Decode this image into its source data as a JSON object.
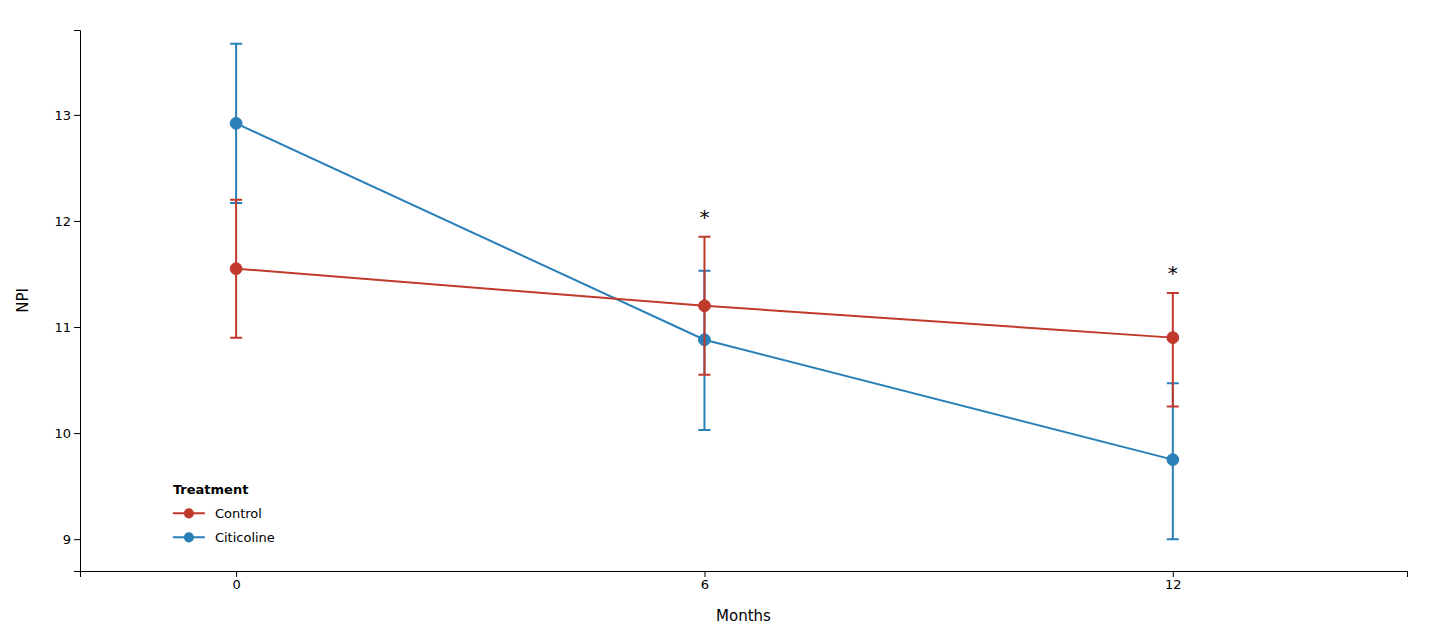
{
  "chart_data": {
    "type": "line",
    "xlabel": "Months",
    "ylabel": "NPI",
    "x": [
      0,
      6,
      12
    ],
    "series": [
      {
        "name": "Control",
        "color": "#c0392b",
        "values": [
          11.55,
          11.2,
          10.9
        ],
        "error_lower": [
          0.65,
          0.65,
          0.65
        ],
        "error_upper": [
          0.65,
          0.65,
          0.42
        ]
      },
      {
        "name": "Citicoline",
        "color": "#2980b9",
        "values": [
          12.92,
          10.88,
          9.75
        ],
        "error_lower": [
          0.75,
          0.85,
          0.75
        ],
        "error_upper": [
          0.75,
          0.65,
          0.72
        ]
      }
    ],
    "annotations": [
      {
        "text": "*",
        "x": 6,
        "y": 11.97
      },
      {
        "text": "*",
        "x": 12,
        "y": 11.44
      }
    ],
    "xlim": [
      -2,
      15
    ],
    "xticks": [
      0,
      6,
      12
    ],
    "ylim": [
      8.7,
      13.8
    ],
    "yticks": [
      9,
      10,
      11,
      12,
      13
    ],
    "marker": "circle",
    "grid": false,
    "legend": "lower left",
    "legend_title": "Treatment"
  }
}
